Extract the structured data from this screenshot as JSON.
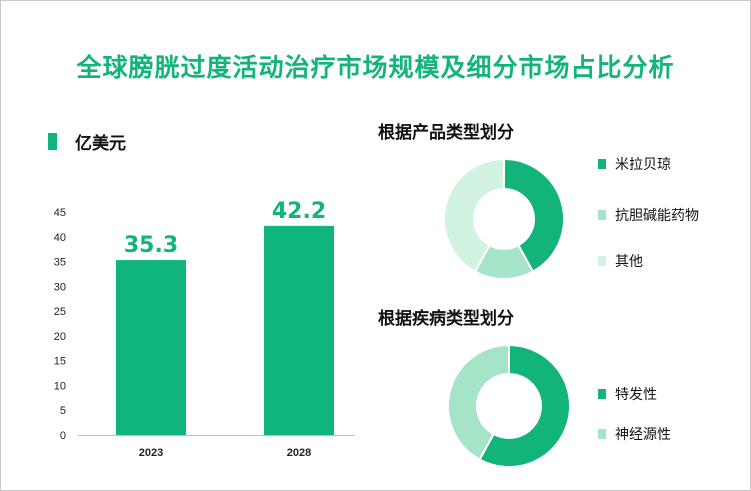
{
  "title": "全球膀胱过度活动治疗市场规模及细分市场占比分析",
  "chart_data": [
    {
      "type": "bar",
      "legend": "亿美元",
      "categories": [
        "2023",
        "2028"
      ],
      "values": [
        35.3,
        42.2
      ],
      "data_labels": [
        "35.3",
        "42.2"
      ],
      "yticks": [
        "0",
        "5",
        "10",
        "15",
        "20",
        "25",
        "30",
        "35",
        "40",
        "45"
      ],
      "ylim": [
        0,
        45
      ],
      "color": "#0fb57c"
    },
    {
      "type": "pie",
      "title": "根据产品类型划分",
      "labels": [
        "米拉贝琼",
        "抗胆碱能药物",
        "其他"
      ],
      "values": [
        42,
        16,
        42
      ],
      "colors": [
        "#12b47a",
        "#a6e4c8",
        "#d2f2e2"
      ]
    },
    {
      "type": "pie",
      "title": "根据疾病类型划分",
      "labels": [
        "特发性",
        "神经源性"
      ],
      "values": [
        58,
        42
      ],
      "colors": [
        "#12b47a",
        "#a6e4c8"
      ]
    }
  ]
}
